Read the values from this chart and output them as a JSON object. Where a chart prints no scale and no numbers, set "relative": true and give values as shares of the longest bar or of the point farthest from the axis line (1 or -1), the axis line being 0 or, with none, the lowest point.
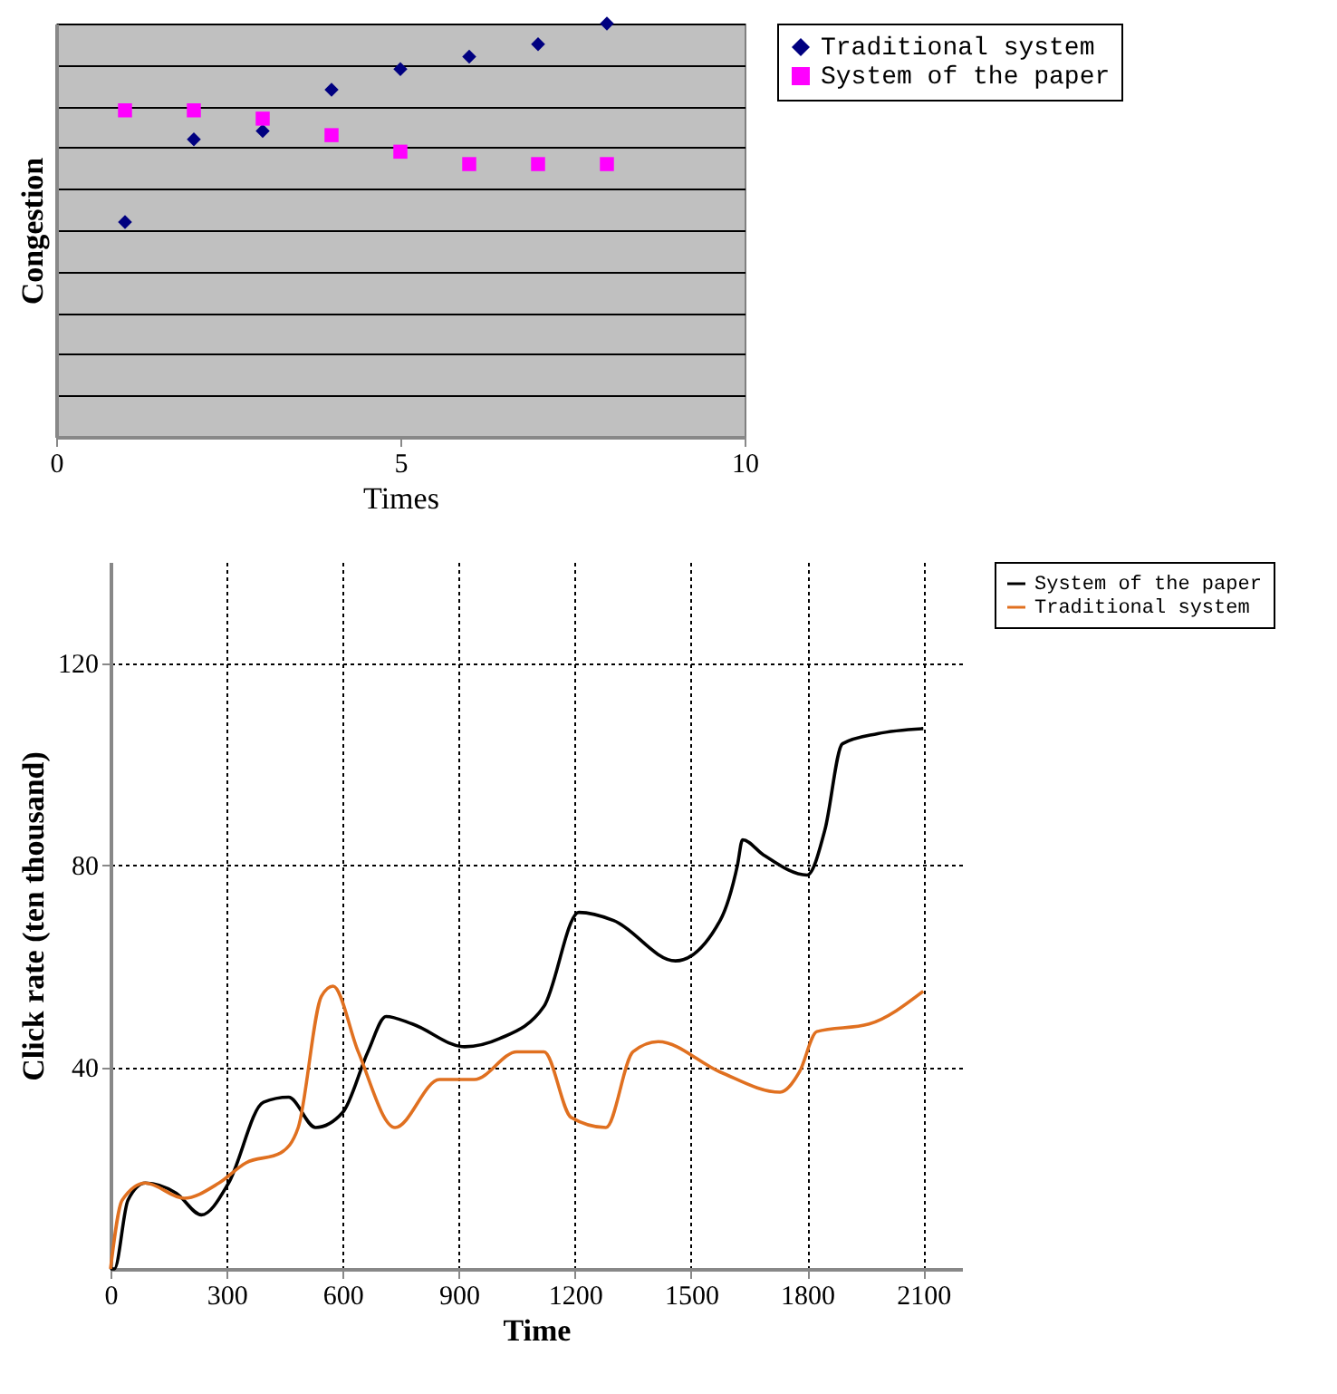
{
  "chart_data": [
    {
      "type": "scatter",
      "xlabel": "Times",
      "ylabel": "Congestion",
      "relative": true,
      "xlim": [
        0,
        10
      ],
      "xticks": [
        0,
        5,
        10
      ],
      "grid": "y",
      "legend": "right",
      "series": [
        {
          "name": "Traditional system",
          "color": "#000080",
          "marker": "diamond",
          "x": [
            1,
            2,
            3,
            4,
            5,
            6,
            7,
            8
          ],
          "values": [
            0.52,
            0.72,
            0.74,
            0.84,
            0.89,
            0.92,
            0.95,
            1
          ]
        },
        {
          "name": "System of the paper",
          "color": "#ff00ff",
          "marker": "square",
          "x": [
            1,
            2,
            3,
            4,
            5,
            6,
            7,
            8
          ],
          "values": [
            0.79,
            0.79,
            0.77,
            0.73,
            0.69,
            0.66,
            0.66,
            0.66
          ]
        }
      ]
    },
    {
      "type": "line",
      "xlabel": "Time",
      "ylabel": "Click rate (ten thousand)",
      "xlim": [
        0,
        2200
      ],
      "xticks": [
        0,
        300,
        600,
        900,
        1200,
        1500,
        1800,
        2100
      ],
      "ylim": [
        0,
        140
      ],
      "yticks": [
        40,
        80,
        120
      ],
      "grid": true,
      "legend": "right",
      "marker": "none",
      "line_style": "solid",
      "series": [
        {
          "name": "System of the paper",
          "color": "#000000",
          "x": [
            0,
            10,
            45,
            90,
            170,
            235,
            305,
            395,
            460,
            530,
            600,
            665,
            712,
            780,
            915,
            1005,
            1120,
            1210,
            1300,
            1460,
            1575,
            1620,
            1633,
            1687,
            1800,
            1846,
            1891,
            1982,
            2100
          ],
          "values": [
            0,
            0,
            13.6,
            17,
            15,
            10.7,
            17,
            33,
            34,
            28,
            31,
            43,
            50,
            48.5,
            44,
            45.6,
            52,
            70.6,
            69,
            61,
            69,
            80,
            85,
            82,
            78,
            87,
            104,
            106,
            107
          ]
        },
        {
          "name": "Traditional system",
          "color": "#e07020",
          "x": [
            0,
            30,
            90,
            190,
            280,
            350,
            440,
            485,
            545,
            575,
            640,
            735,
            850,
            940,
            1050,
            1120,
            1190,
            1280,
            1350,
            1415,
            1575,
            1730,
            1780,
            1825,
            1960,
            2100
          ],
          "values": [
            0,
            13.6,
            17,
            14,
            17,
            21,
            23,
            28,
            54,
            56,
            43,
            28,
            37.5,
            37.5,
            43,
            43,
            30,
            28,
            43,
            45,
            39,
            35,
            39,
            47,
            48.5,
            55
          ]
        }
      ]
    }
  ]
}
